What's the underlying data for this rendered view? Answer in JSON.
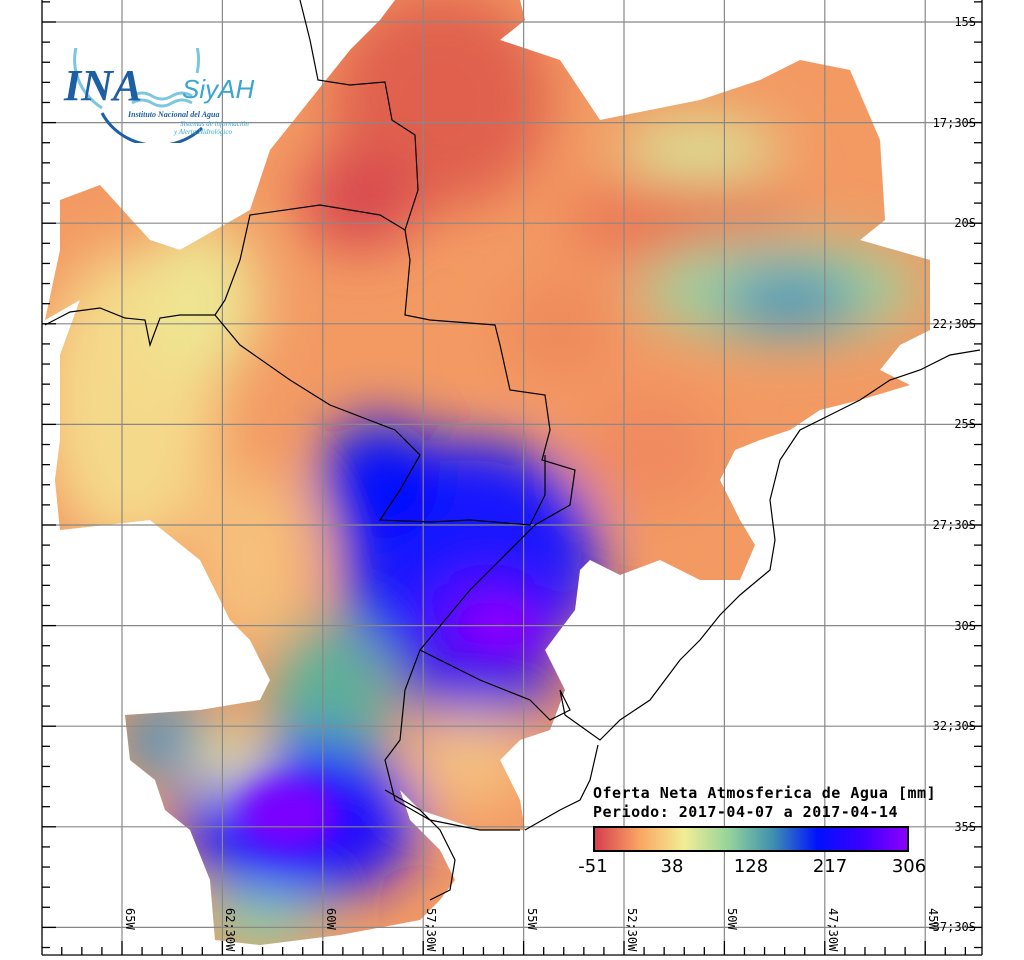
{
  "map": {
    "lat_labels": [
      "15S",
      "17;30S",
      "20S",
      "22;30S",
      "25S",
      "27;30S",
      "30S",
      "32;30S",
      "35S",
      "37;30S"
    ],
    "lon_labels": [
      "65W",
      "62;30W",
      "60W",
      "57;30W",
      "55W",
      "52;30W",
      "50W",
      "47;30W",
      "45W"
    ]
  },
  "legend": {
    "title": "Oferta Neta Atmosferica de Agua [mm]",
    "period": "Periodo: 2017-04-07 a 2017-04-14",
    "ticks": [
      "-51",
      "38",
      "128",
      "217",
      "306"
    ],
    "colors": [
      "#d63e4f",
      "#f9a662",
      "#f2ee95",
      "#95d39b",
      "#3e8fb0",
      "#0010ff",
      "#3a00ff",
      "#8c00ff"
    ]
  },
  "logo": {
    "name": "INA",
    "sub": "SiyAH",
    "line1": "Instituto Nacional del Agua",
    "line2": "Sistemas de información",
    "line3": "y Alerta Hidrológico"
  }
}
